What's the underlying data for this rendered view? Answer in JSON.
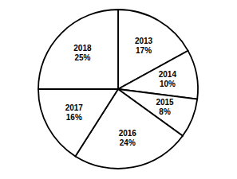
{
  "chart_data": {
    "type": "pie",
    "categories": [
      "2013",
      "2014",
      "2015",
      "2016",
      "2017",
      "2018"
    ],
    "values": [
      17,
      10,
      8,
      24,
      16,
      25
    ],
    "value_labels": [
      "17%",
      "10%",
      "8%",
      "24%",
      "16%",
      "25%"
    ],
    "data_labels": true,
    "colors": [
      "#ffffff",
      "#ffffff",
      "#ffffff",
      "#ffffff",
      "#ffffff",
      "#ffffff"
    ]
  }
}
